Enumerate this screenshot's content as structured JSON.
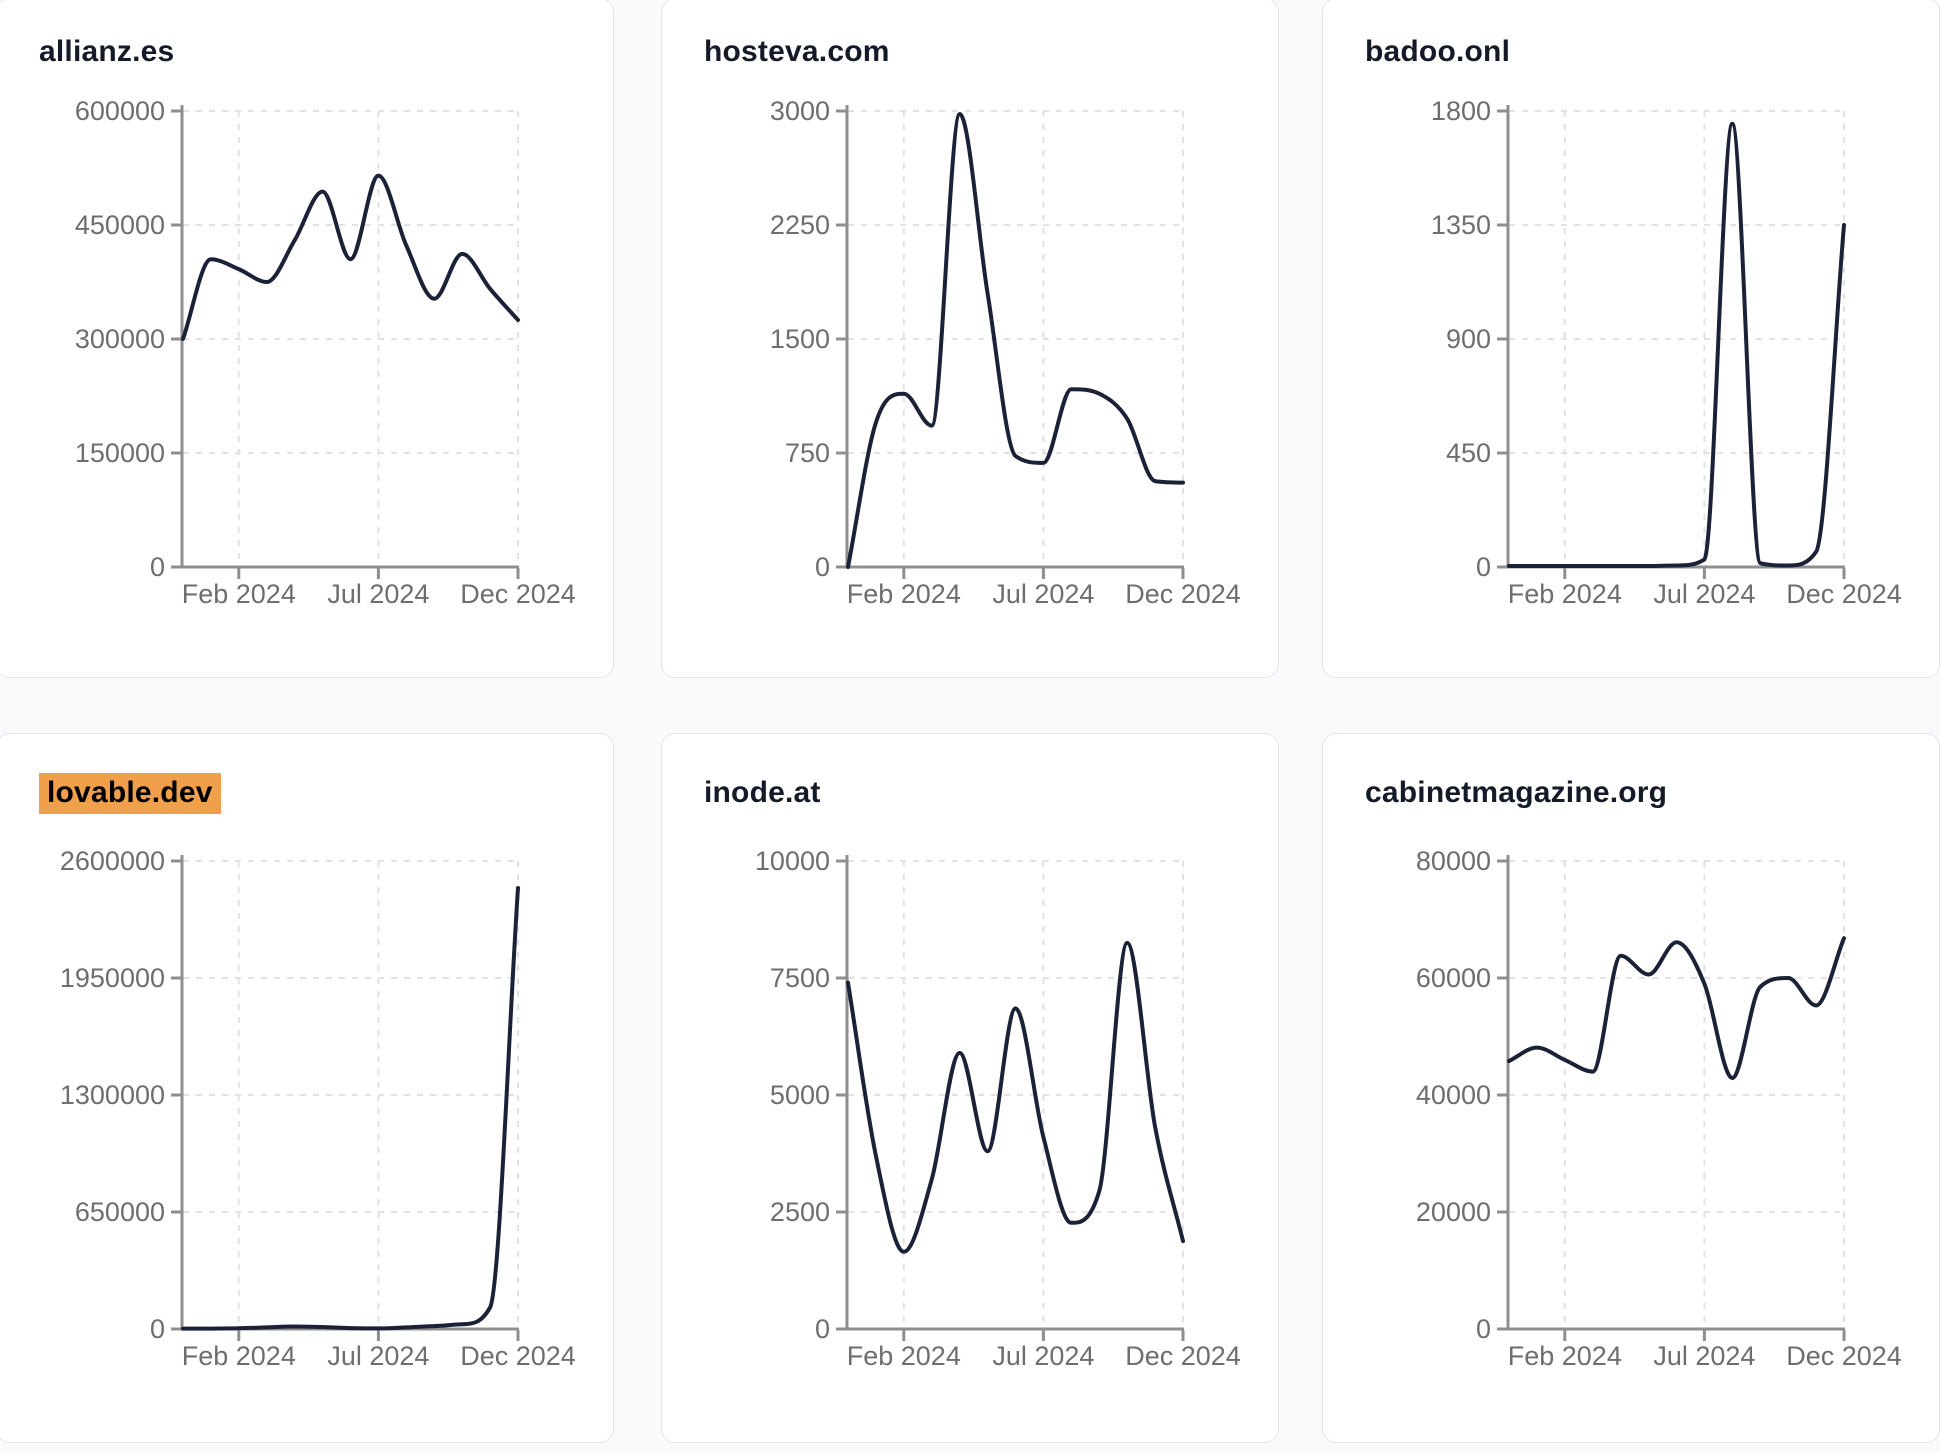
{
  "page": {
    "background": "#fafafb",
    "card_background": "#ffffff",
    "card_border_color": "#e4e4ec",
    "title_color": "#151a28",
    "title_highlight_color": "#f0a04b",
    "line_color": "#1b2237",
    "axis_color": "#8f8f8f",
    "grid_color": "#e2e2e6",
    "tick_label_color": "#6e6e6e"
  },
  "chart_data": [
    {
      "type": "line",
      "title": "allianz.es",
      "title_highlighted": false,
      "x": [
        "Dec 2023",
        "Jan 2024",
        "Feb 2024",
        "Mar 2024",
        "Apr 2024",
        "May 2024",
        "Jun 2024",
        "Jul 2024",
        "Aug 2024",
        "Sep 2024",
        "Oct 2024",
        "Nov 2024",
        "Dec 2024"
      ],
      "values": [
        300000,
        405000,
        392000,
        375000,
        430000,
        494000,
        405000,
        515000,
        423000,
        353000,
        412000,
        366000,
        325000
      ],
      "ylim": [
        0,
        600000
      ],
      "y_ticks": [
        0,
        150000,
        300000,
        450000,
        600000
      ],
      "x_ticks": [
        {
          "label": "Feb 2024",
          "index": 2
        },
        {
          "label": "Jul 2024",
          "index": 7
        },
        {
          "label": "Dec 2024",
          "index": 12
        }
      ],
      "grid": "dashed",
      "legend": null
    },
    {
      "type": "line",
      "title": "hosteva.com",
      "title_highlighted": false,
      "x": [
        "Dec 2023",
        "Jan 2024",
        "Feb 2024",
        "Mar 2024",
        "Apr 2024",
        "May 2024",
        "Jun 2024",
        "Jul 2024",
        "Aug 2024",
        "Sep 2024",
        "Oct 2024",
        "Nov 2024",
        "Dec 2024"
      ],
      "values": [
        0,
        950,
        1140,
        930,
        2980,
        1800,
        730,
        685,
        1170,
        1140,
        975,
        565,
        555
      ],
      "ylim": [
        0,
        3000
      ],
      "y_ticks": [
        0,
        750,
        1500,
        2250,
        3000
      ],
      "x_ticks": [
        {
          "label": "Feb 2024",
          "index": 2
        },
        {
          "label": "Jul 2024",
          "index": 7
        },
        {
          "label": "Dec 2024",
          "index": 12
        }
      ],
      "grid": "dashed",
      "legend": null
    },
    {
      "type": "line",
      "title": "badoo.onl",
      "title_highlighted": false,
      "x": [
        "Dec 2023",
        "Jan 2024",
        "Feb 2024",
        "Mar 2024",
        "Apr 2024",
        "May 2024",
        "Jun 2024",
        "Jul 2024",
        "Aug 2024",
        "Sep 2024",
        "Oct 2024",
        "Nov 2024",
        "Dec 2024"
      ],
      "values": [
        4,
        4,
        4,
        4,
        4,
        4,
        6,
        30,
        1750,
        15,
        6,
        60,
        1350
      ],
      "ylim": [
        0,
        1800
      ],
      "y_ticks": [
        0,
        450,
        900,
        1350,
        1800
      ],
      "x_ticks": [
        {
          "label": "Feb 2024",
          "index": 2
        },
        {
          "label": "Jul 2024",
          "index": 7
        },
        {
          "label": "Dec 2024",
          "index": 12
        }
      ],
      "grid": "dashed",
      "legend": null
    },
    {
      "type": "line",
      "title": "lovable.dev",
      "title_highlighted": true,
      "x": [
        "Dec 2023",
        "Jan 2024",
        "Feb 2024",
        "Mar 2024",
        "Apr 2024",
        "May 2024",
        "Jun 2024",
        "Jul 2024",
        "Aug 2024",
        "Sep 2024",
        "Oct 2024",
        "Nov 2024",
        "Dec 2024"
      ],
      "values": [
        2000,
        2500,
        4000,
        9000,
        14000,
        11000,
        5000,
        3500,
        9000,
        16000,
        26000,
        120000,
        2450000
      ],
      "ylim": [
        0,
        2600000
      ],
      "y_ticks": [
        0,
        650000,
        1300000,
        1950000,
        2600000
      ],
      "x_ticks": [
        {
          "label": "Feb 2024",
          "index": 2
        },
        {
          "label": "Jul 2024",
          "index": 7
        },
        {
          "label": "Dec 2024",
          "index": 12
        }
      ],
      "grid": "dashed",
      "legend": null
    },
    {
      "type": "line",
      "title": "inode.at",
      "title_highlighted": false,
      "x": [
        "Dec 2023",
        "Jan 2024",
        "Feb 2024",
        "Mar 2024",
        "Apr 2024",
        "May 2024",
        "Jun 2024",
        "Jul 2024",
        "Aug 2024",
        "Sep 2024",
        "Oct 2024",
        "Nov 2024",
        "Dec 2024"
      ],
      "values": [
        7400,
        3700,
        1650,
        3200,
        5900,
        3800,
        6850,
        4100,
        2270,
        2950,
        8250,
        4320,
        1880
      ],
      "ylim": [
        0,
        10000
      ],
      "y_ticks": [
        0,
        2500,
        5000,
        7500,
        10000
      ],
      "x_ticks": [
        {
          "label": "Feb 2024",
          "index": 2
        },
        {
          "label": "Jul 2024",
          "index": 7
        },
        {
          "label": "Dec 2024",
          "index": 12
        }
      ],
      "grid": "dashed",
      "legend": null
    },
    {
      "type": "line",
      "title": "cabinetmagazine.org",
      "title_highlighted": false,
      "x": [
        "Dec 2023",
        "Jan 2024",
        "Feb 2024",
        "Mar 2024",
        "Apr 2024",
        "May 2024",
        "Jun 2024",
        "Jul 2024",
        "Aug 2024",
        "Sep 2024",
        "Oct 2024",
        "Nov 2024",
        "Dec 2024"
      ],
      "values": [
        45800,
        48100,
        46000,
        44000,
        63800,
        60600,
        66100,
        59000,
        42900,
        58500,
        60000,
        55300,
        66800
      ],
      "ylim": [
        0,
        80000
      ],
      "y_ticks": [
        0,
        20000,
        40000,
        60000,
        80000
      ],
      "x_ticks": [
        {
          "label": "Feb 2024",
          "index": 2
        },
        {
          "label": "Jul 2024",
          "index": 7
        },
        {
          "label": "Dec 2024",
          "index": 12
        }
      ],
      "grid": "dashed",
      "legend": null
    }
  ]
}
